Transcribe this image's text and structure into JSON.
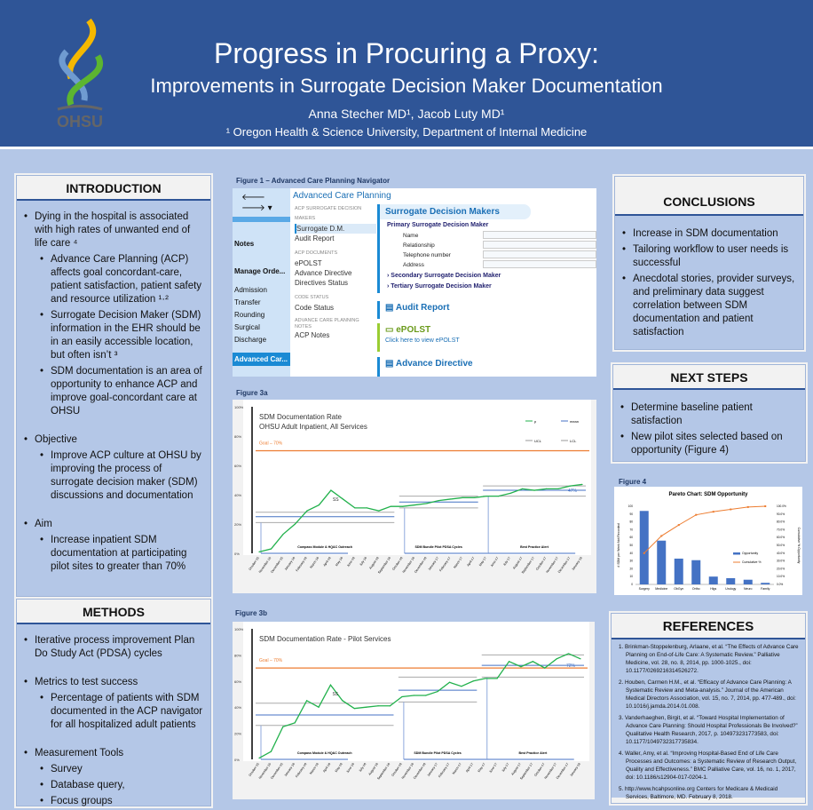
{
  "header": {
    "title": "Progress in Procuring a Proxy:",
    "subtitle": "Improvements in Surrogate Decision Maker Documentation",
    "authors": "Anna Stecher MD¹, Jacob Luty MD¹",
    "affiliation": "¹ Oregon Health & Science University, Department of Internal Medicine",
    "logo_text": "OHSU"
  },
  "introduction": {
    "title": "INTRODUCTION",
    "items": [
      "Dying in the hospital is associated with high rates of unwanted end of life care ⁴",
      "Advance Care Planning (ACP) affects goal concordant-care, patient satisfaction, patient safety and resource utilization ¹·²",
      "Surrogate Decision Maker (SDM) information in the EHR should be in an easily accessible location, but often isn’t ³",
      "SDM documentation is an area of opportunity to enhance ACP and improve goal-concordant care at OHSU",
      "Objective",
      "Improve ACP  culture at OHSU by improving the process of surrogate decision maker (SDM) discussions and documentation",
      "Aim",
      "Increase inpatient SDM documentation at participating pilot sites to greater than 70%"
    ]
  },
  "methods": {
    "title": "METHODS",
    "items": [
      "Iterative process improvement Plan Do Study Act (PDSA) cycles",
      "Metrics to test success",
      "Percentage of patients with SDM documented in the ACP navigator for all hospitalized adult patients",
      "Measurement Tools",
      "Survey",
      "Database query,",
      "Focus groups"
    ]
  },
  "figure1": {
    "label": "Figure 1 – Advanced Care Planning Navigator",
    "header": "Advanced Care Planning",
    "left_nav": [
      "Notes",
      "Manage Orde...",
      "Admission",
      "Transfer",
      "Rounding",
      "Surgical",
      "Discharge",
      "Advanced Car..."
    ],
    "menu": {
      "g1": "ACP SURROGATE DECISION MAKERS",
      "i1": "Surrogate D.M.",
      "i2": "Audit Report",
      "g2": "ACP DOCUMENTS",
      "i3": "ePOLST",
      "i4": "Advance Directive",
      "i5": "Directives Status",
      "g3": "CODE STATUS",
      "i6": "Code Status",
      "g4": "ADVANCE CARE PLANNING NOTES",
      "i7": "ACP Notes"
    },
    "sdm_title": "Surrogate Decision Makers",
    "primary": "Primary Surrogate Decision Maker",
    "fields": [
      "Name",
      "Relationship",
      "Telephone number",
      "Address"
    ],
    "secondary": "Secondary Surrogate Decision Maker",
    "tertiary": "Tertiary Surrogate Decision Maker",
    "audit": "Audit Report",
    "epolst": "ePOLST",
    "epolst_link": "Click here to view ePOLST",
    "advance": "Advance Directive"
  },
  "chart_data": [
    {
      "type": "line",
      "label": "Figure 3a",
      "title": "SDM Documentation Rate",
      "subtitle": "OHSU Adult Inpatient, All Services",
      "ylim": [
        0,
        100
      ],
      "yticks": [
        "0%",
        "20%",
        "40%",
        "60%",
        "80%",
        "100%"
      ],
      "goal": 70,
      "goal_label": "Goal – 70%",
      "end_label": "47%",
      "ss_label": "SS",
      "legend": [
        "p",
        "mean",
        "UCL",
        "LCL"
      ],
      "x": [
        "October-15",
        "November-15",
        "December-15",
        "January-16",
        "February-16",
        "March-16",
        "April-16",
        "May-16",
        "June-16",
        "July-16",
        "August-16",
        "September-16",
        "October-16",
        "November-16",
        "December-16",
        "January-17",
        "February-17",
        "March-17",
        "April-17",
        "May-17",
        "June-17",
        "July-17",
        "August-17",
        "September-17",
        "October-17",
        "November-17",
        "December-17",
        "January-18"
      ],
      "p": [
        1,
        3,
        13,
        20,
        29,
        33,
        43,
        37,
        31,
        31,
        29,
        32,
        32,
        33,
        34,
        36,
        37,
        38,
        38,
        39,
        39,
        41,
        44,
        43,
        44,
        44,
        46,
        47
      ],
      "phases": [
        {
          "name": "Compass Module & HQ&C Outreach",
          "start": 0,
          "end": 11,
          "mean": 25,
          "ucl": 28,
          "lcl": 21
        },
        {
          "name": "SDM Bundle Pilot PDSA Cycles",
          "start": 12,
          "end": 18,
          "mean": 35,
          "ucl": 39,
          "lcl": 31
        },
        {
          "name": "Best Practice Alert",
          "start": 19,
          "end": 27,
          "mean": 43,
          "ucl": 46,
          "lcl": 39
        }
      ]
    },
    {
      "type": "line",
      "label": "Figure 3b",
      "title": "SDM Documentation Rate - Pilot Services",
      "subtitle": "",
      "ylim": [
        0,
        100
      ],
      "yticks": [
        "0%",
        "20%",
        "40%",
        "60%",
        "80%",
        "100%"
      ],
      "goal": 70,
      "goal_label": "Goal – 70%",
      "end_label": "72%",
      "ss_label": "SS",
      "legend": [],
      "x": [
        "October-15",
        "November-15",
        "December-15",
        "January-16",
        "February-16",
        "March-16",
        "April-16",
        "May-16",
        "June-16",
        "July-16",
        "August-16",
        "September-16",
        "October-16",
        "November-16",
        "December-16",
        "January-17",
        "February-17",
        "March-17",
        "April-17",
        "May-17",
        "June-17",
        "July-17",
        "August-17",
        "September-17",
        "October-17",
        "November-17",
        "December-17",
        "January-18"
      ],
      "p": [
        1,
        6,
        25,
        28,
        45,
        40,
        57,
        45,
        39,
        40,
        41,
        41,
        48,
        49,
        49,
        52,
        59,
        56,
        60,
        62,
        62,
        75,
        71,
        75,
        70,
        77,
        81,
        77
      ],
      "phases": [
        {
          "name": "Compass Module & HQ&C Outreach",
          "start": 0,
          "end": 11,
          "mean": 34,
          "ucl": 43,
          "lcl": 26
        },
        {
          "name": "SDM Bundle Pilot PDSA Cycles",
          "start": 12,
          "end": 18,
          "mean": 53,
          "ucl": 63,
          "lcl": 44
        },
        {
          "name": "Best Practice Alert",
          "start": 19,
          "end": 27,
          "mean": 72,
          "ucl": 80,
          "lcl": 63
        }
      ]
    },
    {
      "type": "bar",
      "label": "Figure 4",
      "title": "Pareto Chart: SDM Opportunity",
      "categories": [
        "Surgery",
        "Medicine",
        "ObGyn",
        "Ortho",
        "Hlgs",
        "Urology",
        "Neuro",
        "Family"
      ],
      "values": [
        94,
        56,
        33,
        31,
        10,
        8,
        6,
        2
      ],
      "cumulative": [
        40,
        62,
        76,
        89,
        93,
        96,
        99,
        100
      ],
      "ylim": [
        0,
        100
      ],
      "ylim2": [
        0,
        100
      ],
      "ylabel": "# SDM per Week Not Recorded",
      "ylabel2": "Cumulative % Opportunity",
      "legend": [
        "Opportunity",
        "Cumulative %"
      ]
    }
  ],
  "conclusions": {
    "title": "CONCLUSIONS",
    "items": [
      "Increase in SDM documentation",
      "Tailoring workflow to user needs is successful",
      "Anecdotal stories, provider surveys, and preliminary data suggest correlation between SDM documentation and patient satisfaction"
    ]
  },
  "next_steps": {
    "title": "NEXT STEPS",
    "items": [
      "Determine baseline patient satisfaction",
      "New pilot sites selected based on opportunity (Figure 4)"
    ]
  },
  "references": {
    "title": "REFERENCES",
    "items": [
      "1. Brinkman-Stoppelenburg, Arlaane, et al. “The Effects of Advance Care Planning on End-of-Life Care: A Systematic Review.” Palliative Medicine, vol. 28, no. 8, 2014, pp. 1000-1025., doi: 10.1177/0269216314526272.",
      "2. Houben, Carmen H.M., et al. “Efficacy of Advance Care Planning: A Systematic Review and Meta-analysis.” Journal of the American Medical Directors Association, vol. 15, no. 7, 2014, pp. 477-489., doi: 10.1016/j.jamda.2014.01.008.",
      "3. Vanderhaeghen, Birgit, et al. “Toward Hospital Implementation of Advance Care Planning: Should Hospital Professionals Be Involved?” Qualitative Health Research, 2017, p. 104973231773583, doi: 10.1177/1049732317735834.",
      "4. Waller, Amy, et al. “Improving Hospital-Based End of Life Care Processes and Outcomes: a Systematic Review of Research Output, Quality and Effectiveness.” BMC Palliative Care, vol. 16, no. 1, 2017, doi: 10.1186/s12904-017-0204-1.",
      "5. http://www.hcahpsonline.org Centers for Medicare & Medicaid Services, Baltimore, MD. February 8, 2018."
    ]
  }
}
